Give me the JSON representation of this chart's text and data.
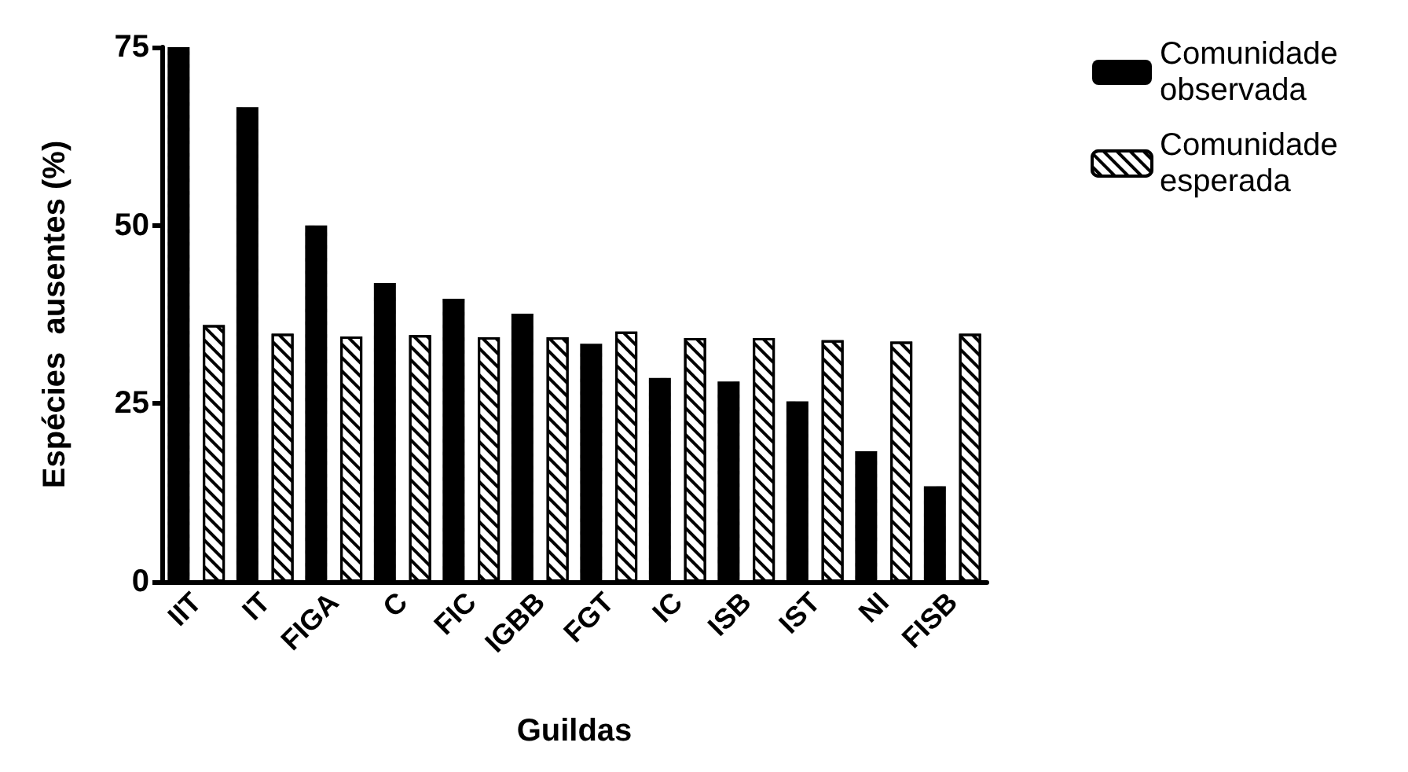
{
  "chart_data": {
    "type": "bar",
    "xlabel": "Guildas",
    "ylabel": "Espécies  ausentes (%)",
    "categories": [
      "IIT",
      "IT",
      "FIGA",
      "C",
      "FIC",
      "IGBB",
      "FGT",
      "IC",
      "ISB",
      "IST",
      "NI",
      "FISB"
    ],
    "series": [
      {
        "name": "Comunidade observada",
        "color": "#000000",
        "values": [
          75,
          66.6,
          50,
          41.9,
          39.7,
          37.6,
          33.4,
          28.6,
          28.1,
          25.3,
          18.3,
          13.4
        ]
      },
      {
        "name": "Comunidade esperada",
        "color": "#ffffff",
        "values": [
          36,
          34.8,
          34.4,
          34.6,
          34.3,
          34.3,
          35.1,
          34.2,
          34.2,
          33.9,
          33.7,
          34.8
        ]
      }
    ],
    "ylim": [
      0,
      75
    ],
    "yticks": [
      0,
      25,
      50,
      75
    ],
    "grid": false,
    "legend": "top right"
  }
}
